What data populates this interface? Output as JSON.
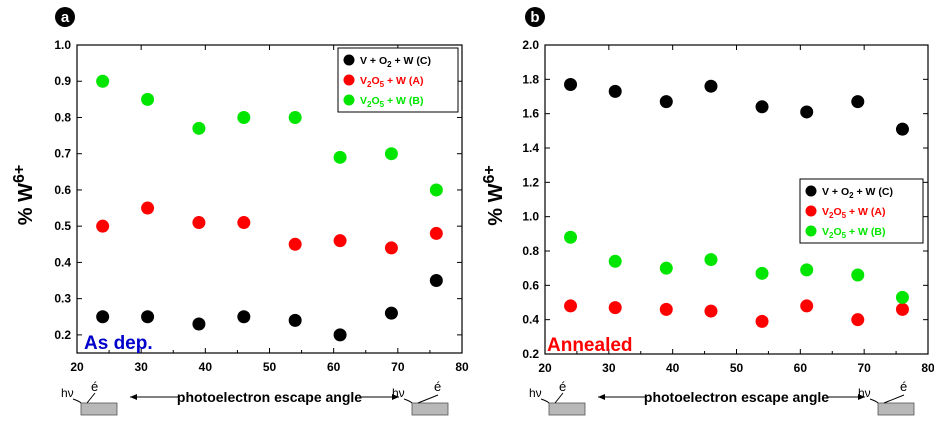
{
  "chart_data": [
    {
      "type": "scatter",
      "panel_label": "a",
      "ylabel": "% W",
      "ylabel_sup": "6+",
      "annotation": "As dep.",
      "xlim": [
        20,
        80
      ],
      "ylim": [
        0.2,
        1.0
      ],
      "ylim_axis": [
        0.15,
        1.0
      ],
      "x_ticks": [
        "20",
        "30",
        "40",
        "50",
        "60",
        "70",
        "80"
      ],
      "y_ticks": [
        "0.2",
        "0.3",
        "0.4",
        "0.5",
        "0.6",
        "0.7",
        "0.8",
        "0.9",
        "1.0"
      ],
      "legend_position": "top-right",
      "series": [
        {
          "name": "V + O2 + W (C)",
          "color": "#000000",
          "x": [
            24,
            31,
            39,
            46,
            54,
            61,
            69,
            76
          ],
          "y": [
            0.25,
            0.25,
            0.23,
            0.25,
            0.24,
            0.2,
            0.26,
            0.35
          ]
        },
        {
          "name": "V2O5 + W (A)",
          "color": "#ff0000",
          "x": [
            24,
            31,
            39,
            46,
            54,
            61,
            69,
            76
          ],
          "y": [
            0.5,
            0.55,
            0.51,
            0.51,
            0.45,
            0.46,
            0.44,
            0.48
          ]
        },
        {
          "name": "V2O5 + W (B)",
          "color": "#00e600",
          "x": [
            24,
            31,
            39,
            46,
            54,
            61,
            69,
            76
          ],
          "y": [
            0.9,
            0.85,
            0.77,
            0.8,
            0.8,
            0.69,
            0.7,
            0.6
          ]
        }
      ]
    },
    {
      "type": "scatter",
      "panel_label": "b",
      "ylabel": "% W",
      "ylabel_sup": "6+",
      "annotation": "Annealed",
      "xlim": [
        20,
        80
      ],
      "ylim": [
        0.2,
        2.0
      ],
      "ylim_axis": [
        0.2,
        2.0
      ],
      "x_ticks": [
        "20",
        "30",
        "40",
        "50",
        "60",
        "70",
        "80"
      ],
      "y_ticks": [
        "0.2",
        "0.4",
        "0.6",
        "0.8",
        "1.0",
        "1.2",
        "1.4",
        "1.6",
        "1.8",
        "2.0"
      ],
      "legend_position": "center-right",
      "series": [
        {
          "name": "V + O2 + W (C)",
          "color": "#000000",
          "x": [
            24,
            31,
            39,
            46,
            54,
            61,
            69,
            76
          ],
          "y": [
            1.77,
            1.73,
            1.67,
            1.76,
            1.64,
            1.61,
            1.67,
            1.51
          ]
        },
        {
          "name": "V2O5 + W (A)",
          "color": "#ff0000",
          "x": [
            24,
            31,
            39,
            46,
            54,
            61,
            69,
            76
          ],
          "y": [
            0.48,
            0.47,
            0.46,
            0.45,
            0.39,
            0.48,
            0.4,
            0.46
          ]
        },
        {
          "name": "V2O5 + W (B)",
          "color": "#00e600",
          "x": [
            24,
            31,
            39,
            46,
            54,
            61,
            69,
            76
          ],
          "y": [
            0.88,
            0.74,
            0.7,
            0.75,
            0.67,
            0.69,
            0.66,
            0.53
          ]
        }
      ]
    }
  ],
  "xlabel": "photoelectron escape angle",
  "symbol_hv": "hν",
  "symbol_e": "é",
  "legend_entries": [
    {
      "pre": "V + O",
      "sub": "2",
      "post": " + W (C)"
    },
    {
      "pre": "V",
      "sub": "2",
      "mid": "O",
      "sub2": "5",
      "post": " + W (A)"
    },
    {
      "pre": "V",
      "sub": "2",
      "mid": "O",
      "sub2": "5",
      "post": " + W (B)"
    }
  ],
  "annotation_colors": {
    "a": "#0000cc",
    "b": "#ff0000"
  }
}
